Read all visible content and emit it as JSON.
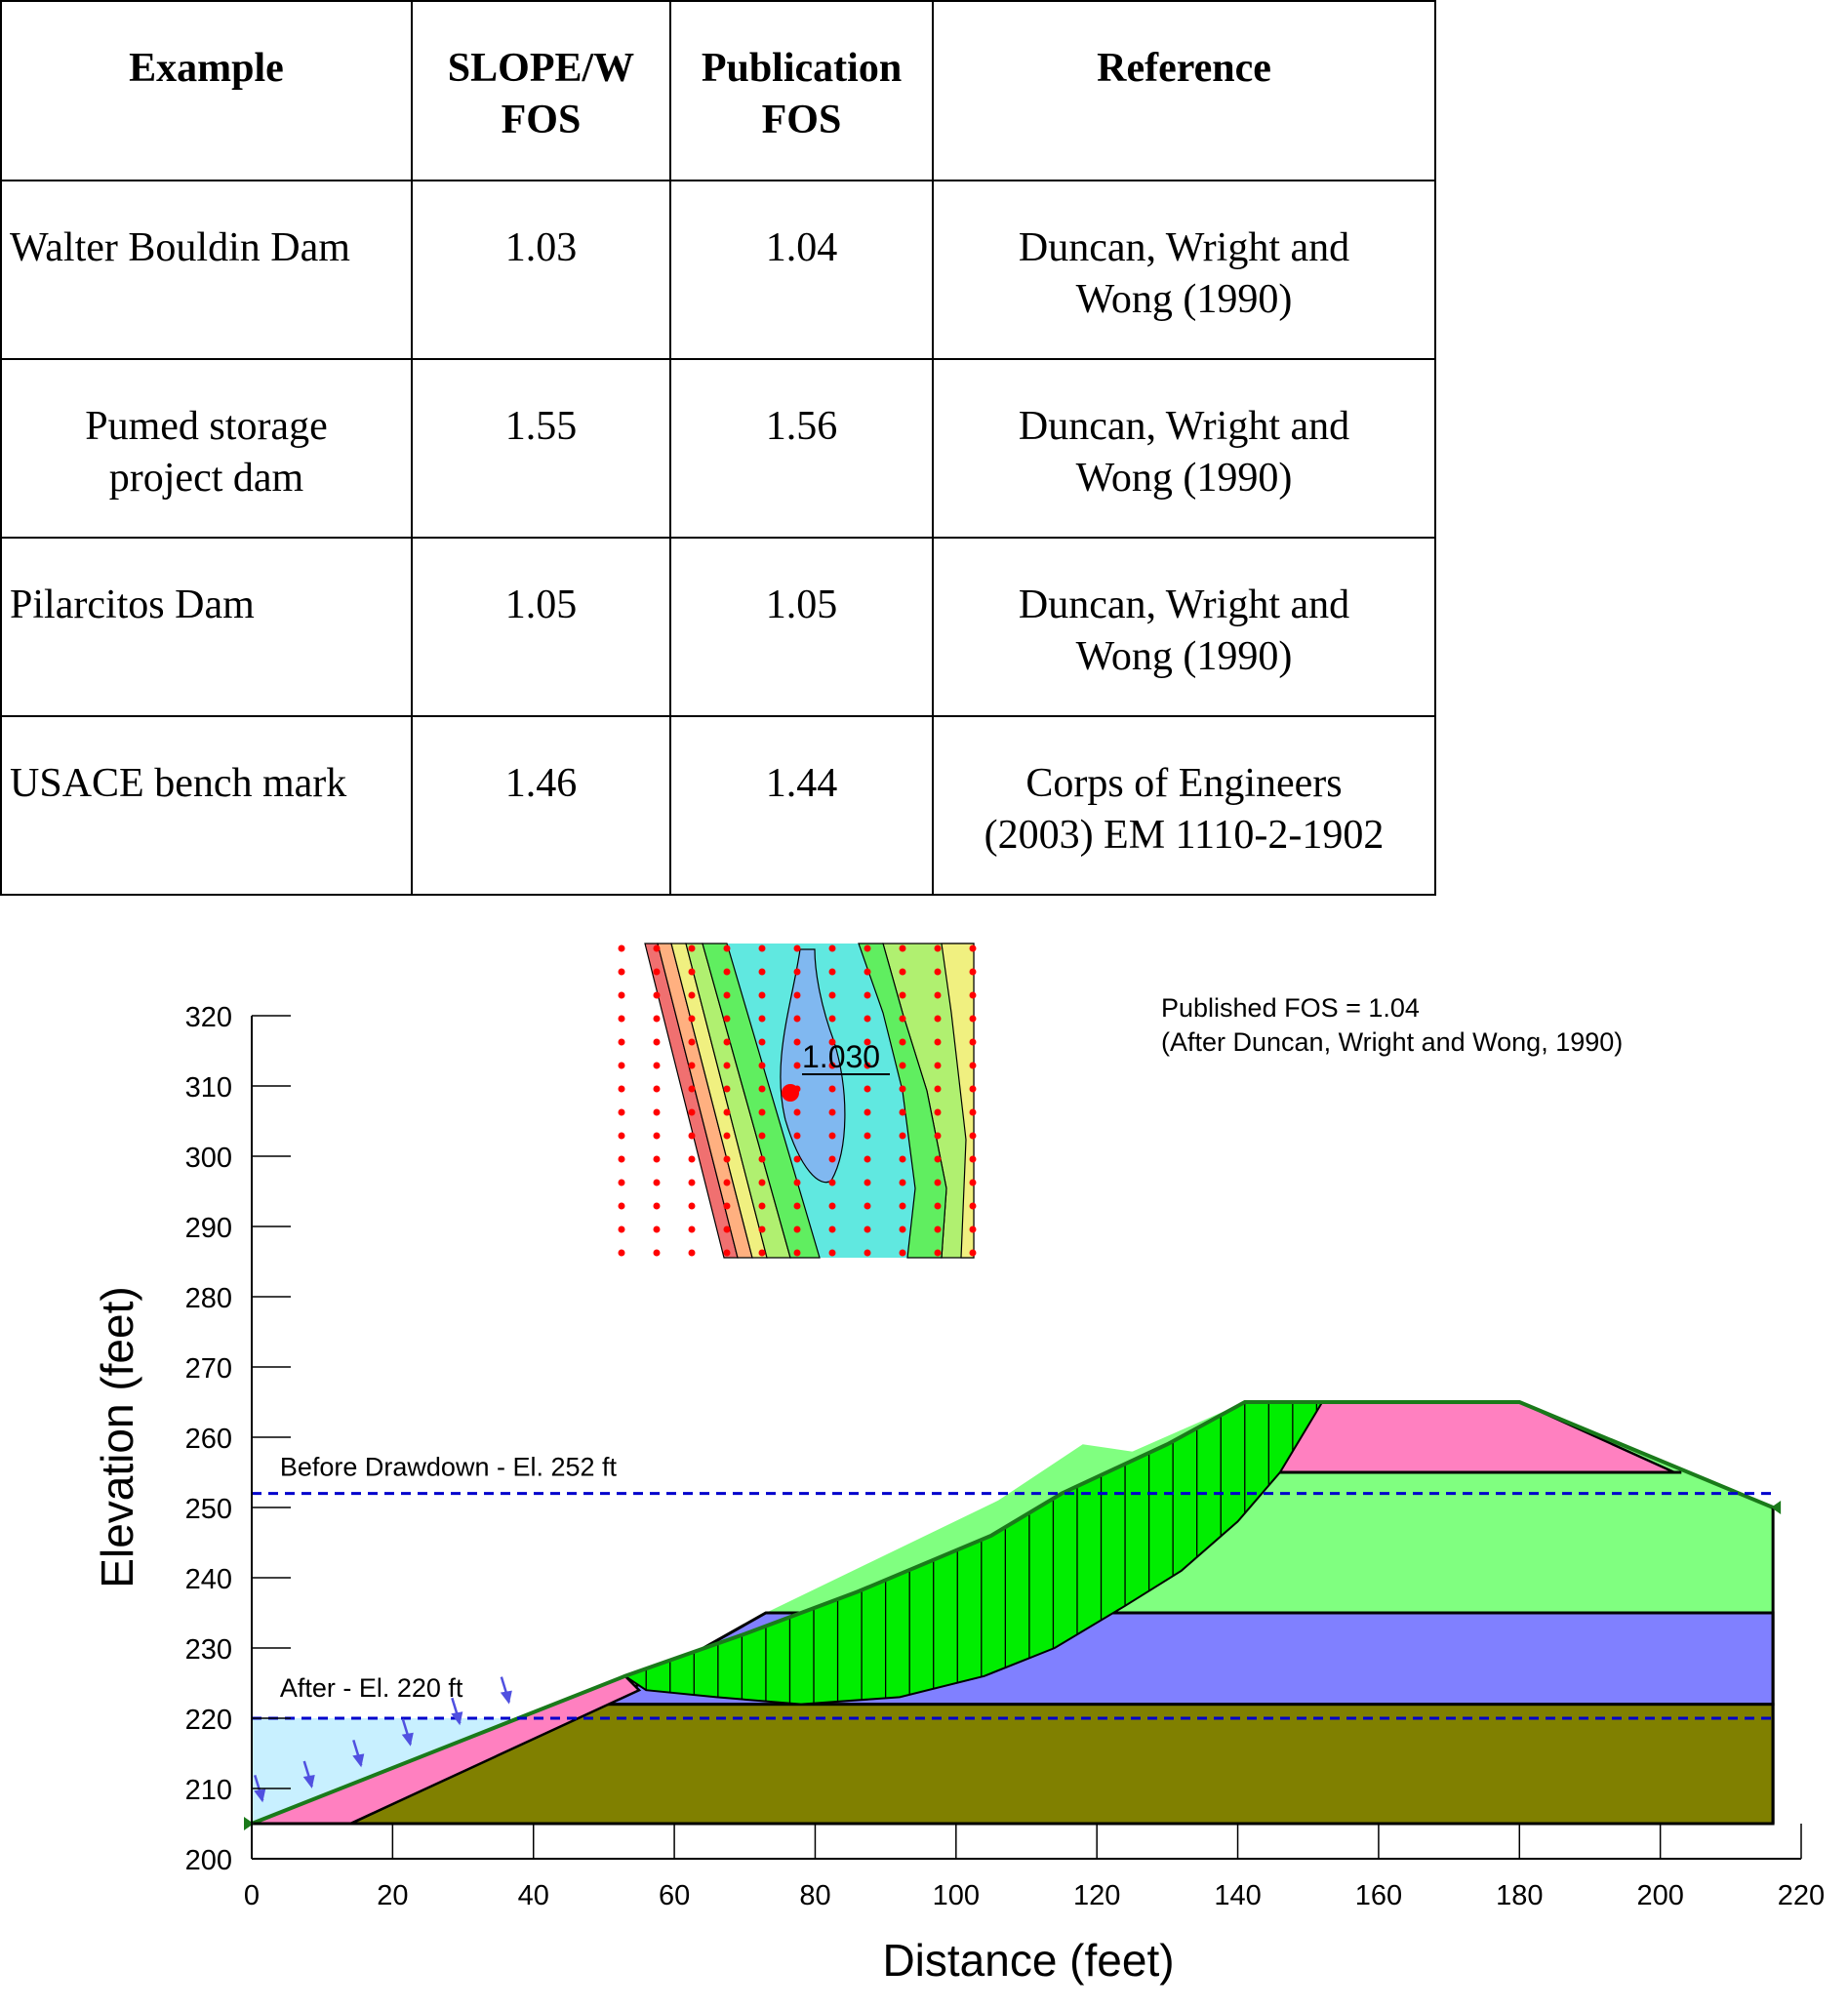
{
  "table": {
    "headers": {
      "example": "Example",
      "slope_w_fos": [
        "SLOPE/W",
        "FOS"
      ],
      "publication_fos": [
        "Publication",
        "FOS"
      ],
      "reference": "Reference"
    },
    "rows": [
      {
        "example": [
          "Walter Bouldin Dam"
        ],
        "slope_w_fos": "1.03",
        "publication_fos": "1.04",
        "reference": [
          "Duncan, Wright and",
          "Wong (1990)"
        ],
        "align": "left"
      },
      {
        "example": [
          "Pumed storage",
          "project dam"
        ],
        "slope_w_fos": "1.55",
        "publication_fos": "1.56",
        "reference": [
          "Duncan, Wright and",
          "Wong (1990)"
        ],
        "align": "center"
      },
      {
        "example": [
          "Pilarcitos Dam"
        ],
        "slope_w_fos": "1.05",
        "publication_fos": "1.05",
        "reference": [
          "Duncan, Wright and",
          "Wong (1990)"
        ],
        "align": "left"
      },
      {
        "example": [
          "USACE bench mark"
        ],
        "slope_w_fos": "1.46",
        "publication_fos": "1.44",
        "reference": [
          "Corps of Engineers",
          "(2003) EM 1110-2-1902"
        ],
        "align": "left"
      }
    ]
  },
  "figure": {
    "xlabel": "Distance (feet)",
    "ylabel": "Elevation (feet)",
    "xlim": [
      0,
      220
    ],
    "ylim": [
      200,
      320
    ],
    "x_ticks": [
      0,
      20,
      40,
      60,
      80,
      100,
      120,
      140,
      160,
      180,
      200,
      220
    ],
    "y_ticks": [
      200,
      210,
      220,
      230,
      240,
      250,
      260,
      270,
      280,
      290,
      300,
      310,
      320
    ],
    "critical_fos_label": "1.030",
    "published_fos_text": "Published FOS = 1.04",
    "published_fos_source": "(After Duncan, Wright and Wong, 1990)",
    "water_before_label": "Before Drawdown - El. 252 ft",
    "water_after_label": "After - El. 220 ft",
    "water_before_elevation": 252,
    "water_after_elevation": 220,
    "colors": {
      "embankment_shell": "#80ff80",
      "core_pink": "#ff80c0",
      "blue_layer": "#8080ff",
      "foundation": "#808000",
      "reservoir": "#c8f0ff",
      "slip_mass": "#00ee00",
      "water_line": "#0000cc",
      "grid_point": "#ff0000",
      "surface_line": "#1a7a1a"
    }
  }
}
